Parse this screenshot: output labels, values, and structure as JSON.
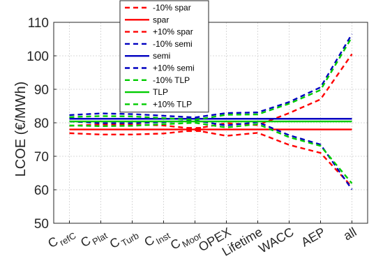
{
  "chart_data": {
    "type": "line",
    "title": "",
    "xlabel": "",
    "ylabel": "LCOE (€/MWh)",
    "ylim": [
      50,
      110
    ],
    "yticks": [
      50,
      60,
      70,
      80,
      90,
      100,
      110
    ],
    "grid": true,
    "legend_position": "top-center",
    "categories": [
      {
        "main": "C",
        "sub": "refC"
      },
      {
        "main": "C",
        "sub": "Plat"
      },
      {
        "main": "C",
        "sub": "Turb"
      },
      {
        "main": "C",
        "sub": "Inst"
      },
      {
        "main": "C",
        "sub": "Moor"
      },
      {
        "main": "OPEX",
        "sub": ""
      },
      {
        "main": "Lifetime",
        "sub": ""
      },
      {
        "main": "WACC",
        "sub": ""
      },
      {
        "main": "AEP",
        "sub": ""
      },
      {
        "main": "all",
        "sub": ""
      }
    ],
    "series": [
      {
        "name": "-10% spar",
        "color": "#ff0000",
        "dash": true,
        "values": [
          76.9,
          76.5,
          76.5,
          76.8,
          77.8,
          76.1,
          77.0,
          73.4,
          71.0,
          60.9
        ]
      },
      {
        "name": "spar",
        "color": "#ff0000",
        "dash": false,
        "values": [
          78.0,
          78.0,
          78.0,
          78.0,
          78.0,
          78.0,
          78.0,
          78.0,
          78.0,
          78.0
        ]
      },
      {
        "name": "+10% spar",
        "color": "#ff0000",
        "dash": true,
        "values": [
          79.1,
          79.5,
          79.5,
          79.2,
          78.2,
          79.9,
          79.3,
          82.9,
          87.0,
          100.5
        ]
      },
      {
        "name": "-10% semi",
        "color": "#0000c0",
        "dash": true,
        "values": [
          80.4,
          79.9,
          79.9,
          80.2,
          80.7,
          79.2,
          80.2,
          76.3,
          73.5,
          60.1
        ]
      },
      {
        "name": "semi",
        "color": "#0000c0",
        "dash": false,
        "values": [
          81.2,
          81.2,
          81.2,
          81.2,
          81.2,
          81.2,
          81.2,
          81.2,
          81.2,
          81.2
        ]
      },
      {
        "name": "+10% semi",
        "color": "#0000c0",
        "dash": true,
        "values": [
          82.3,
          82.8,
          82.6,
          82.1,
          81.6,
          82.9,
          83.1,
          86.2,
          90.6,
          106.5
        ]
      },
      {
        "name": "-10% TLP",
        "color": "#00cc00",
        "dash": true,
        "values": [
          79.2,
          79.0,
          79.1,
          79.6,
          80.0,
          78.6,
          79.6,
          75.7,
          73.1,
          61.9
        ]
      },
      {
        "name": "TLP",
        "color": "#00cc00",
        "dash": false,
        "values": [
          80.4,
          80.4,
          80.4,
          80.4,
          80.4,
          80.4,
          80.4,
          80.4,
          80.4,
          80.4
        ]
      },
      {
        "name": "+10% TLP",
        "color": "#00cc00",
        "dash": true,
        "values": [
          81.7,
          82.0,
          81.9,
          81.4,
          80.9,
          82.4,
          82.5,
          85.7,
          89.8,
          105.6
        ]
      }
    ]
  }
}
